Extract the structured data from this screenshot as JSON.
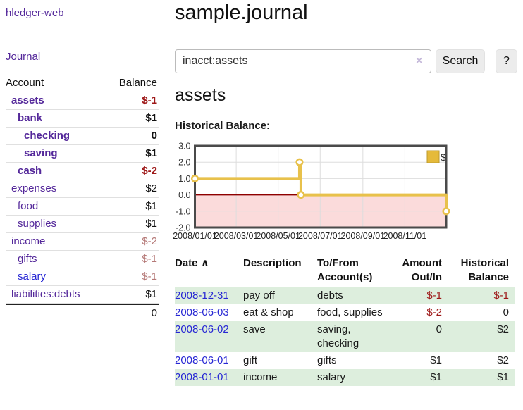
{
  "colors": {
    "purple_link": "#54289a",
    "blue_link": "#2727d4",
    "negative": "#9d1717",
    "negative_faded": "#b57977",
    "row_stripe_green": "#ddeedd",
    "chart_line_gold": "#e8c14b",
    "chart_negative_pink": "#fbdbdb",
    "chart_zero_line": "#8e0000"
  },
  "sidebar": {
    "app_title": "hledger-web",
    "journal_link": "Journal",
    "table": {
      "account_header": "Account",
      "balance_header": "Balance",
      "rows": [
        {
          "name": "assets",
          "indent": 1,
          "bold": true,
          "balance": "$-1",
          "balance_style": "neg"
        },
        {
          "name": "bank",
          "indent": 2,
          "bold": true,
          "balance": "$1",
          "balance_style": "pos"
        },
        {
          "name": "checking",
          "indent": 3,
          "bold": true,
          "balance": "0",
          "balance_style": "pos"
        },
        {
          "name": "saving",
          "indent": 3,
          "bold": true,
          "balance": "$1",
          "balance_style": "pos"
        },
        {
          "name": "cash",
          "indent": 2,
          "bold": true,
          "balance": "$-2",
          "balance_style": "neg"
        },
        {
          "name": "expenses",
          "indent": 1,
          "bold": false,
          "balance": "$2",
          "balance_style": "pos"
        },
        {
          "name": "food",
          "indent": 2,
          "bold": false,
          "balance": "$1",
          "balance_style": "pos"
        },
        {
          "name": "supplies",
          "indent": 2,
          "bold": false,
          "balance": "$1",
          "balance_style": "pos"
        },
        {
          "name": "income",
          "indent": 1,
          "bold": false,
          "balance": "$-2",
          "balance_style": "neg-faded"
        },
        {
          "name": "gifts",
          "indent": 2,
          "bold": false,
          "balance": "$-1",
          "balance_style": "neg-faded"
        },
        {
          "name": "salary",
          "indent": 2,
          "bold": false,
          "link_style": "unvisited",
          "balance": "$-1",
          "balance_style": "neg-faded"
        },
        {
          "name": "liabilities:debts",
          "indent": 1,
          "bold": false,
          "balance": "$1",
          "balance_style": "pos"
        }
      ],
      "total": "0"
    }
  },
  "header": {
    "title": "sample.journal"
  },
  "search": {
    "query": "inacct:assets",
    "clear_icon": "×",
    "search_button": "Search",
    "help_button": "?"
  },
  "account_page": {
    "heading": "assets",
    "chart_title": "Historical Balance:"
  },
  "chart_data": {
    "type": "line",
    "title": "Historical Balance",
    "step": true,
    "x_domain": [
      "2008-01-01",
      "2008-12-31"
    ],
    "ylim": [
      -2,
      3
    ],
    "y_ticks": [
      3.0,
      2.0,
      1.0,
      0.0,
      -1.0,
      -2.0
    ],
    "x_ticks": [
      {
        "date": "2008-01-01",
        "label": "2008/01/01"
      },
      {
        "date": "2008-03-01",
        "label": "2008/03/01"
      },
      {
        "date": "2008-05-01",
        "label": "2008/05/01"
      },
      {
        "date": "2008-07-01",
        "label": "2008/07/01"
      },
      {
        "date": "2008-09-01",
        "label": "2008/09/01"
      },
      {
        "date": "2008-11-01",
        "label": "2008/11/01"
      }
    ],
    "series": [
      {
        "name": "$",
        "color": "#e8c14b",
        "points": [
          {
            "date": "2008-01-01",
            "y": 1.0
          },
          {
            "date": "2008-06-01",
            "y": 2.0
          },
          {
            "date": "2008-06-03",
            "y": 0.0
          },
          {
            "date": "2008-12-31",
            "y": -1.0
          }
        ]
      }
    ],
    "legend": {
      "label": "$",
      "position": "top-right"
    },
    "grid": true,
    "negative_region_shaded": true
  },
  "register": {
    "headers": {
      "date": "Date",
      "sort_indicator": "∧",
      "description": "Description",
      "accounts": "To/From Account(s)",
      "amount": "Amount Out/In",
      "balance": "Historical Balance"
    },
    "rows": [
      {
        "date": "2008-12-31",
        "description": "pay off",
        "accounts": "debts",
        "amount": "$-1",
        "amount_neg": true,
        "balance": "$-1",
        "balance_neg": true
      },
      {
        "date": "2008-06-03",
        "description": "eat & shop",
        "accounts": "food, supplies",
        "amount": "$-2",
        "amount_neg": true,
        "balance": "0",
        "balance_neg": false
      },
      {
        "date": "2008-06-02",
        "description": "save",
        "accounts": "saving, checking",
        "amount": "0",
        "amount_neg": false,
        "balance": "$2",
        "balance_neg": false
      },
      {
        "date": "2008-06-01",
        "description": "gift",
        "accounts": "gifts",
        "amount": "$1",
        "amount_neg": false,
        "balance": "$2",
        "balance_neg": false
      },
      {
        "date": "2008-01-01",
        "description": "income",
        "accounts": "salary",
        "amount": "$1",
        "amount_neg": false,
        "balance": "$1",
        "balance_neg": false
      }
    ]
  }
}
